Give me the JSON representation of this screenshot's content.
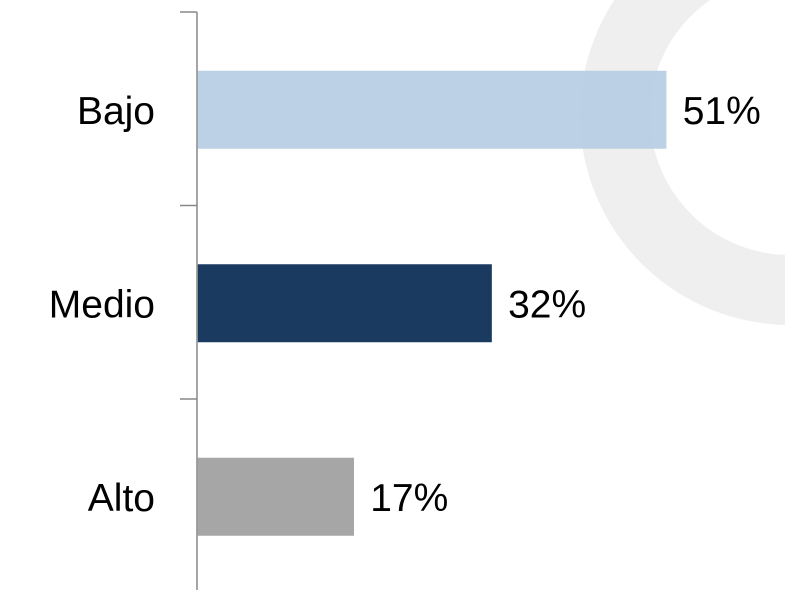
{
  "chart_data": {
    "type": "bar",
    "orientation": "horizontal",
    "categories": [
      "Bajo",
      "Medio",
      "Alto"
    ],
    "values": [
      51,
      32,
      17
    ],
    "value_labels": [
      "51%",
      "32%",
      "17%"
    ],
    "colors": [
      "#b8cde4",
      "#1a3a60",
      "#a6a6a6"
    ],
    "unit": "%",
    "xlim": [
      0,
      100
    ],
    "grid": false,
    "legend": "none",
    "title": "",
    "xlabel": "",
    "ylabel": ""
  },
  "decoration": {
    "background_ring_color": "#efefef"
  }
}
